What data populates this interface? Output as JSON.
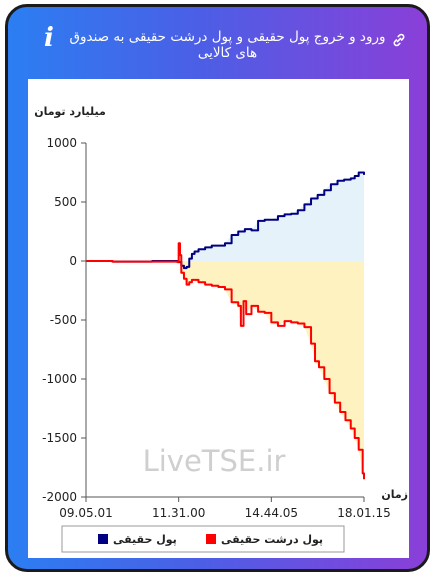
{
  "header": {
    "title": "ورود و خروج پول حقیقی و پول درشت حقیقی به صندوق های کالایی",
    "info_icon": "info-icon",
    "link_icon": "link-icon"
  },
  "watermark": "LiveTSE.ir",
  "colors": {
    "series1": "#000080",
    "series2": "#ff0000",
    "fill1": "#e6f2fa",
    "fill2": "#fdf2c0"
  },
  "chart_data": {
    "type": "line",
    "ylabel": "میلیارد تومان",
    "xlabel": "زمان",
    "ylim": [
      -2000,
      1000
    ],
    "yticks": [
      1000,
      500,
      0,
      -500,
      -1000,
      -1500,
      -2000
    ],
    "ytick_labels": [
      "1000",
      "500",
      "0",
      "-500",
      "-1000",
      "-1500",
      "-2000"
    ],
    "xticks": [
      0,
      7,
      14,
      21
    ],
    "xtick_labels": [
      "09.05.01",
      "11.31.00",
      "14.44.05",
      "18.01.15"
    ],
    "xlim": [
      0,
      21
    ],
    "legend": {
      "placement": "bottom",
      "entries": [
        "پول حقیقی",
        "پول درشت حقیقی"
      ]
    },
    "series": [
      {
        "name": "پول حقیقی",
        "color": "#000080",
        "fill": "#e6f2fa",
        "x": [
          0,
          1,
          2,
          3,
          4,
          5,
          6,
          7,
          7.2,
          7.4,
          7.6,
          7.8,
          8.0,
          8.2,
          8.5,
          9.0,
          9.5,
          10.0,
          10.5,
          11.0,
          11.5,
          12.0,
          12.5,
          13.0,
          13.5,
          14.0,
          14.5,
          15.0,
          15.5,
          16.0,
          16.5,
          17.0,
          17.5,
          18.0,
          18.5,
          19.0,
          19.5,
          20.0,
          20.3,
          20.6,
          21.0
        ],
        "values": [
          0,
          0,
          -5,
          -5,
          -5,
          0,
          0,
          -10,
          -40,
          -60,
          -50,
          20,
          60,
          80,
          100,
          115,
          130,
          130,
          150,
          220,
          250,
          270,
          260,
          340,
          350,
          350,
          380,
          395,
          400,
          430,
          480,
          530,
          560,
          600,
          650,
          680,
          690,
          700,
          720,
          750,
          730
        ]
      },
      {
        "name": "پول درشت حقیقی",
        "color": "#ff0000",
        "fill": "#fdf2c0",
        "x": [
          0,
          1,
          2,
          3,
          4,
          5,
          6,
          6.9,
          7.0,
          7.1,
          7.2,
          7.4,
          7.6,
          7.8,
          8.0,
          8.5,
          9.0,
          9.5,
          10.0,
          10.5,
          11.0,
          11.5,
          11.7,
          11.9,
          12.1,
          12.5,
          13.0,
          13.5,
          14.0,
          14.5,
          15.0,
          15.5,
          16.0,
          16.5,
          17.0,
          17.3,
          17.6,
          18.0,
          18.4,
          18.8,
          19.2,
          19.6,
          20.0,
          20.3,
          20.6,
          20.9,
          21.0
        ],
        "values": [
          0,
          0,
          -5,
          -5,
          -5,
          -5,
          -5,
          -10,
          150,
          50,
          -100,
          -150,
          -200,
          -180,
          -160,
          -180,
          -200,
          -210,
          -220,
          -240,
          -350,
          -380,
          -550,
          -340,
          -450,
          -380,
          -430,
          -440,
          -520,
          -550,
          -510,
          -520,
          -530,
          -560,
          -700,
          -850,
          -900,
          -1000,
          -1120,
          -1200,
          -1280,
          -1350,
          -1420,
          -1500,
          -1600,
          -1800,
          -1850
        ]
      }
    ]
  }
}
